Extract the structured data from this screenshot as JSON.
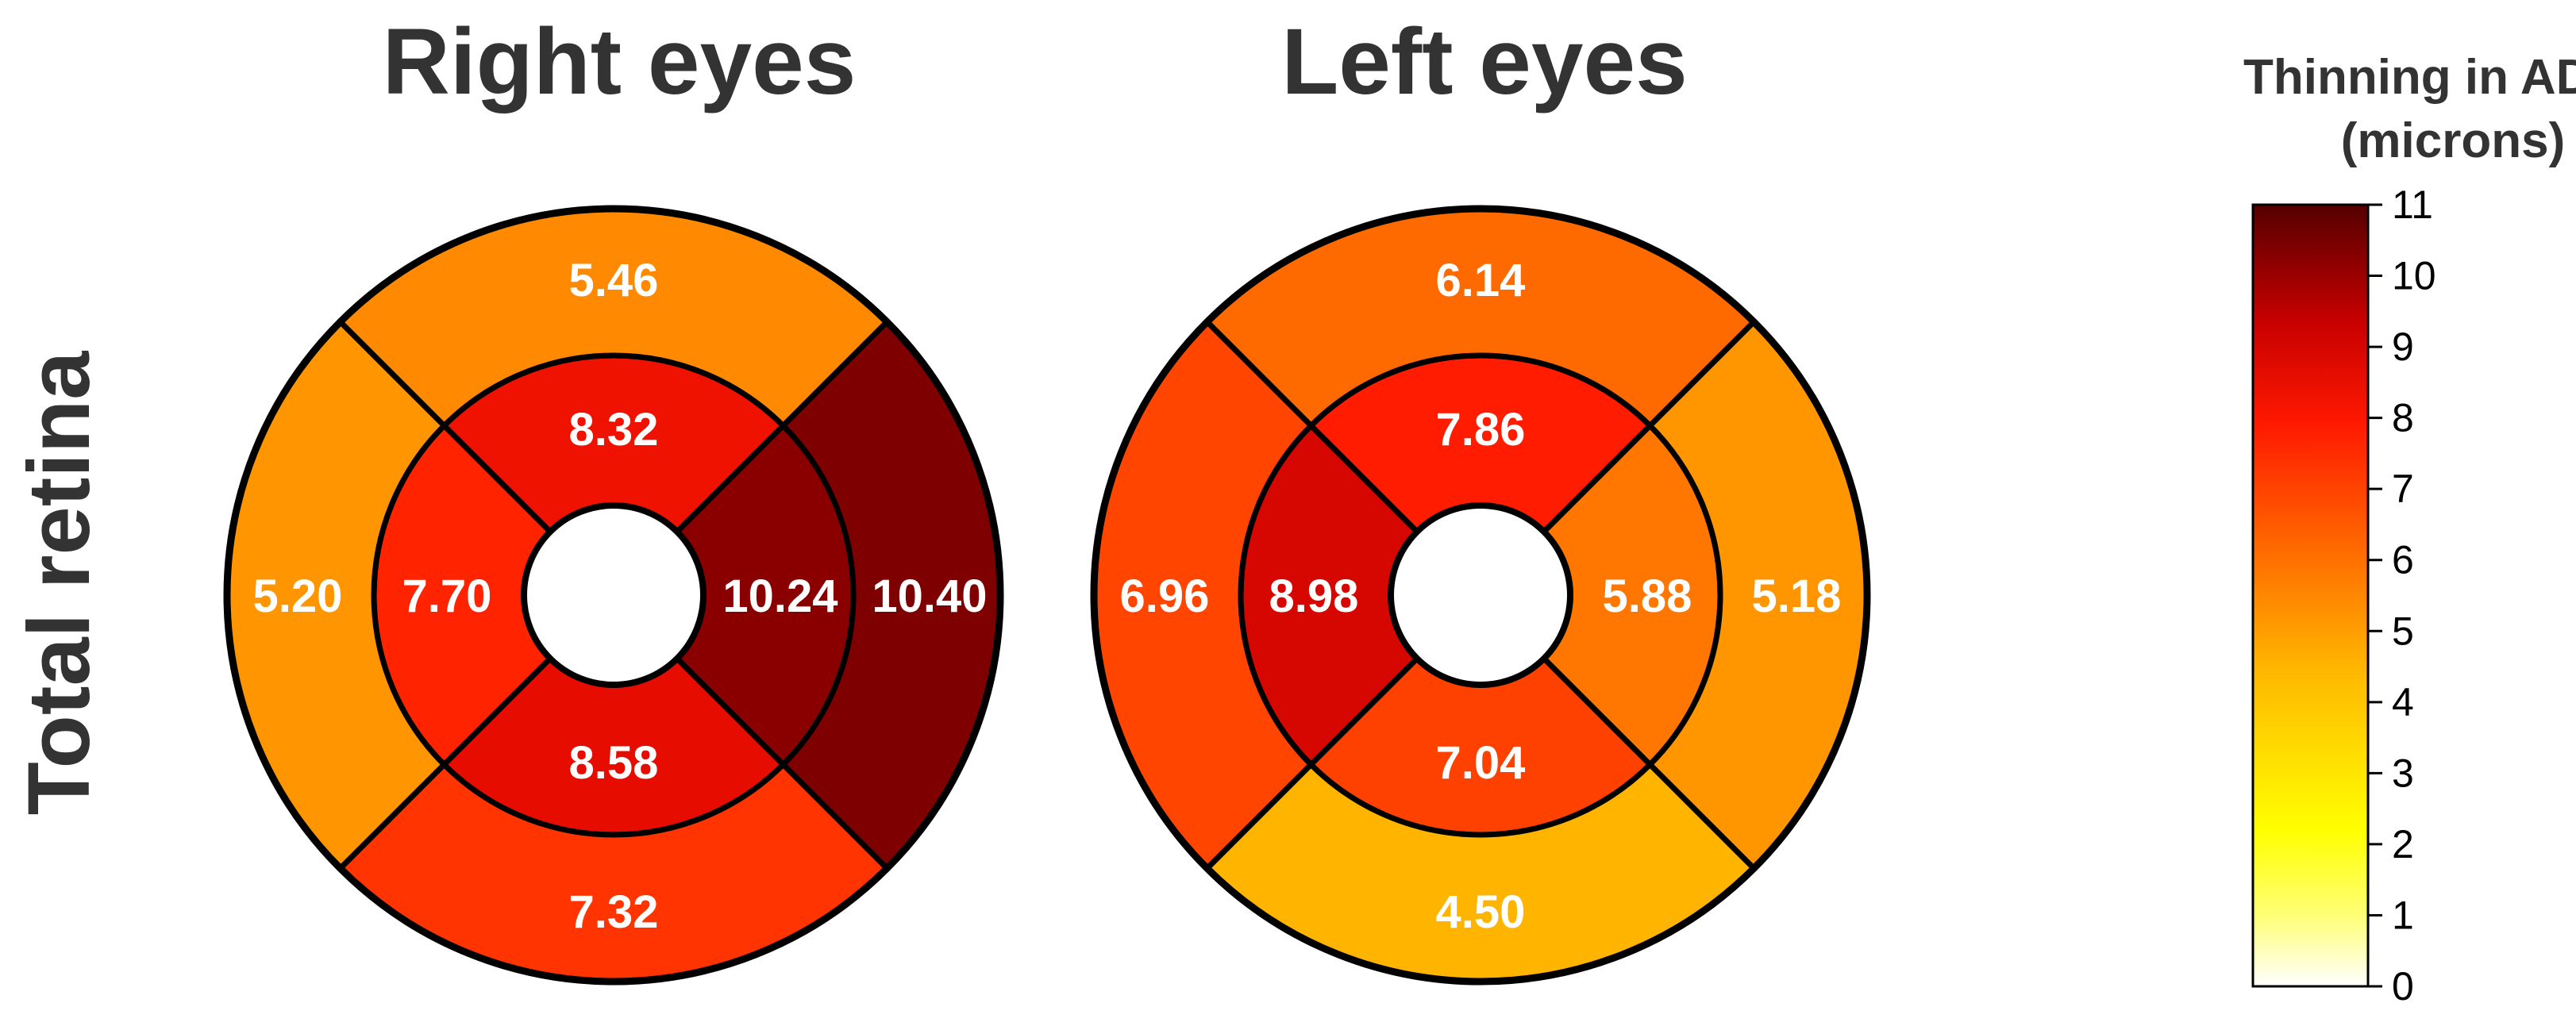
{
  "row_label": "Total retina",
  "colorbar": {
    "title_line1": "Thinning in ADHD",
    "title_line2": "(microns)",
    "min": 0,
    "max": 11,
    "ticks": [
      "0",
      "1",
      "2",
      "3",
      "4",
      "5",
      "6",
      "7",
      "8",
      "9",
      "10",
      "11"
    ],
    "colormap": "hot"
  },
  "chart_data": [
    {
      "type": "heatmap",
      "title": "Right eyes",
      "sectors": [
        {
          "region": "inner-superior",
          "value": 8.32,
          "label": "8.32"
        },
        {
          "region": "inner-temporal",
          "value": 7.7,
          "label": "7.70"
        },
        {
          "region": "inner-nasal",
          "value": 10.24,
          "label": "10.24"
        },
        {
          "region": "inner-inferior",
          "value": 8.58,
          "label": "8.58"
        },
        {
          "region": "outer-superior",
          "value": 5.46,
          "label": "5.46"
        },
        {
          "region": "outer-temporal",
          "value": 5.2,
          "label": "5.20"
        },
        {
          "region": "outer-nasal",
          "value": 10.4,
          "label": "10.40"
        },
        {
          "region": "outer-inferior",
          "value": 7.32,
          "label": "7.32"
        }
      ]
    },
    {
      "type": "heatmap",
      "title": "Left eyes",
      "sectors": [
        {
          "region": "inner-superior",
          "value": 7.86,
          "label": "7.86"
        },
        {
          "region": "inner-nasal",
          "value": 8.98,
          "label": "8.98"
        },
        {
          "region": "inner-temporal",
          "value": 5.88,
          "label": "5.88"
        },
        {
          "region": "inner-inferior",
          "value": 7.04,
          "label": "7.04"
        },
        {
          "region": "outer-superior",
          "value": 6.14,
          "label": "6.14"
        },
        {
          "region": "outer-nasal",
          "value": 6.96,
          "label": "6.96"
        },
        {
          "region": "outer-temporal",
          "value": 5.18,
          "label": "5.18"
        },
        {
          "region": "outer-inferior",
          "value": 4.5,
          "label": "4.50"
        }
      ]
    }
  ]
}
